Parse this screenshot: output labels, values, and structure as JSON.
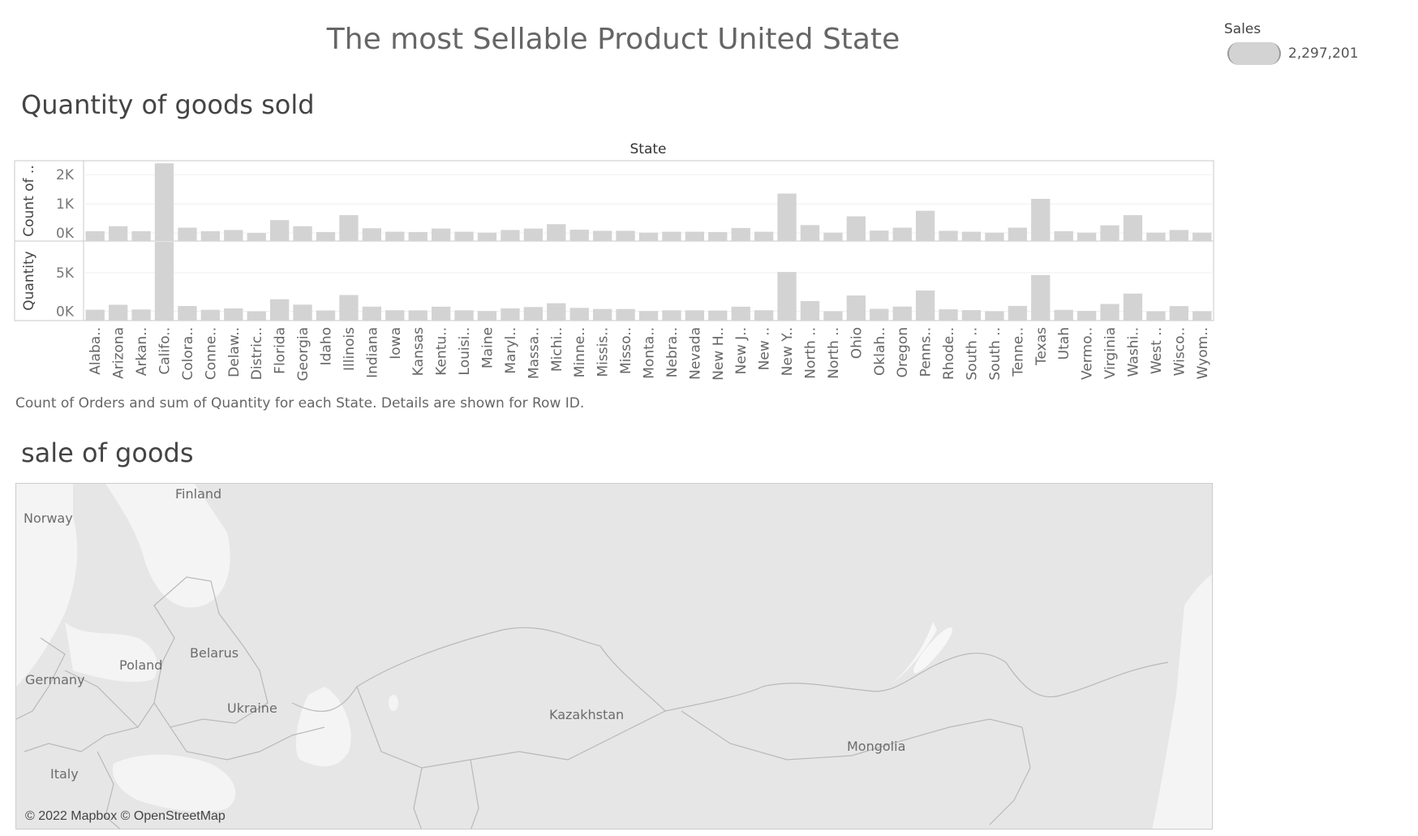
{
  "dashboard": {
    "title": "The most Sellable Product United State"
  },
  "legend": {
    "title": "Sales",
    "value": "2,297,201",
    "color": "#d3d3d3"
  },
  "chart_section": {
    "title": "Quantity of goods sold",
    "caption": "Count of Orders and sum of Quantity for each State.  Details are shown for Row ID."
  },
  "chart_data": {
    "type": "bar",
    "title": "State",
    "bar_color": "#d3d3d3",
    "categories": [
      "Alaba..",
      "Arizona",
      "Arkan..",
      "Califo..",
      "Colora..",
      "Conne..",
      "Delaw..",
      "Distric..",
      "Florida",
      "Georgia",
      "Idaho",
      "Illinois",
      "Indiana",
      "Iowa",
      "Kansas",
      "Kentu..",
      "Louisi..",
      "Maine",
      "Maryl..",
      "Massa..",
      "Michi..",
      "Minne..",
      "Missis..",
      "Misso..",
      "Monta..",
      "Nebra..",
      "Nevada",
      "New H..",
      "New J..",
      "New ..",
      "New Y..",
      "North ..",
      "North ..",
      "Ohio",
      "Oklah..",
      "Oregon",
      "Penns..",
      "Rhode..",
      "South ..",
      "South ..",
      "Tenne..",
      "Texas",
      "Utah",
      "Vermo..",
      "Virginia",
      "Washi..",
      "West ..",
      "Wisco..",
      "Wyom.."
    ],
    "panels": [
      {
        "ylabel": "Count of ..",
        "ticks": [
          {
            "value": 0,
            "label": "0K"
          },
          {
            "value": 1000,
            "label": "1K"
          },
          {
            "value": 2000,
            "label": "2K"
          }
        ],
        "ylim": [
          -280,
          2480
        ],
        "values": [
          60,
          230,
          60,
          2390,
          180,
          60,
          100,
          0,
          440,
          230,
          30,
          610,
          160,
          40,
          30,
          150,
          40,
          10,
          100,
          150,
          300,
          110,
          70,
          70,
          10,
          40,
          40,
          30,
          170,
          40,
          1350,
          270,
          10,
          570,
          80,
          180,
          760,
          70,
          40,
          10,
          180,
          1170,
          60,
          10,
          260,
          610,
          10,
          100,
          10
        ]
      },
      {
        "ylabel": "Quantity",
        "ticks": [
          {
            "value": 0,
            "label": "0K"
          },
          {
            "value": 5000,
            "label": "5K"
          }
        ],
        "ylim": [
          -1200,
          9100
        ],
        "values": [
          210,
          850,
          240,
          9000,
          690,
          200,
          380,
          0,
          1560,
          870,
          110,
          2110,
          610,
          150,
          120,
          600,
          140,
          40,
          390,
          560,
          1050,
          450,
          300,
          300,
          40,
          140,
          130,
          100,
          600,
          150,
          5100,
          1330,
          20,
          2050,
          320,
          620,
          2700,
          260,
          160,
          20,
          700,
          4700,
          190,
          50,
          950,
          2300,
          10,
          680,
          20
        ]
      }
    ]
  },
  "map_section": {
    "title": "sale of goods",
    "attribution": "© 2022 Mapbox © OpenStreetMap",
    "labels": {
      "finland": "Finland",
      "norway": "Norway",
      "poland": "Poland",
      "belarus": "Belarus",
      "germany": "Germany",
      "ukraine": "Ukraine",
      "kazakhstan": "Kazakhstan",
      "mongolia": "Mongolia",
      "italy": "Italy"
    }
  }
}
